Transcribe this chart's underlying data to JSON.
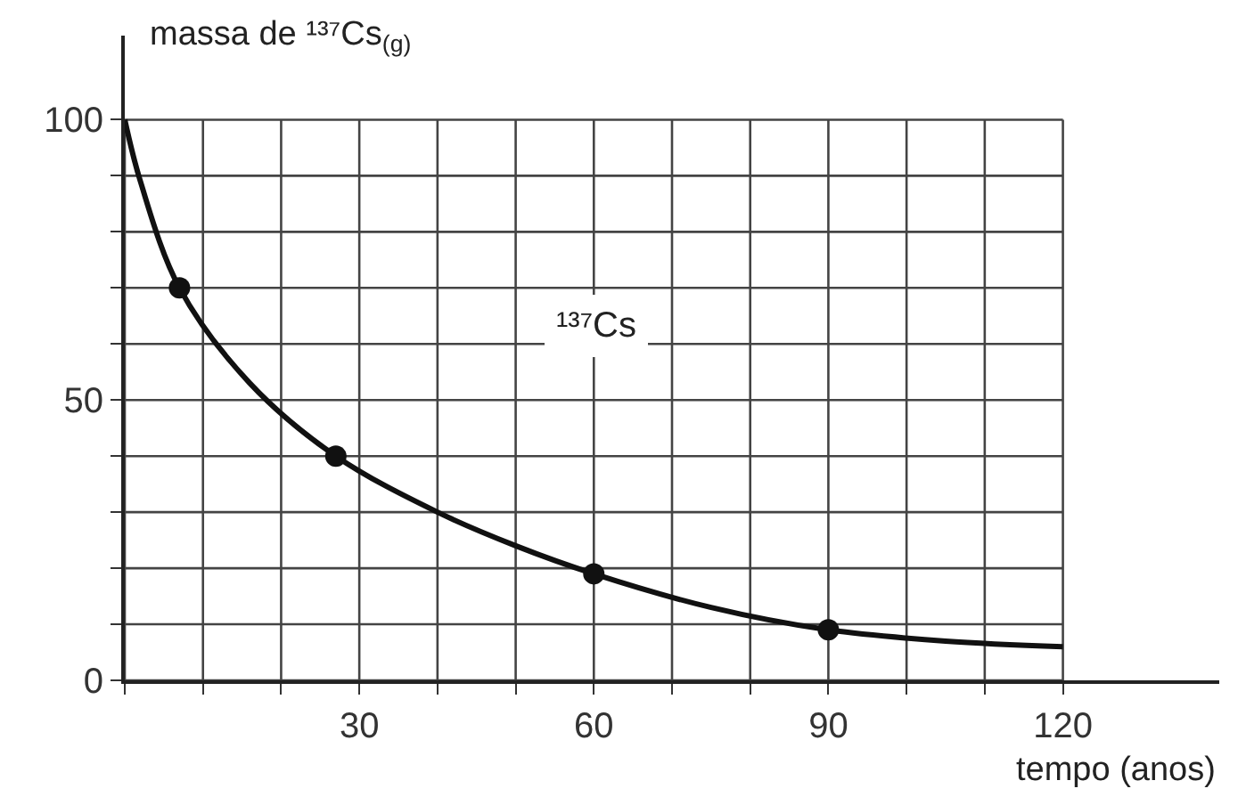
{
  "chart_data": {
    "type": "line",
    "xlabel": "tempo (anos)",
    "ylabel": "massa de ¹³⁷Cs$_{(g)}$",
    "annotations": [
      "¹³⁷Cs"
    ],
    "xlim": [
      0,
      140
    ],
    "ylim": [
      0,
      115
    ],
    "xticks": [
      {
        "value": 0,
        "label": null
      },
      {
        "value": 10,
        "label": null
      },
      {
        "value": 20,
        "label": null
      },
      30,
      {
        "value": 40,
        "label": null
      },
      {
        "value": 50,
        "label": null
      },
      60,
      {
        "value": 70,
        "label": null
      },
      {
        "value": 80,
        "label": null
      },
      90,
      {
        "value": 100,
        "label": null
      },
      {
        "value": 110,
        "label": null
      },
      120
    ],
    "yticks": [
      0,
      {
        "value": 10,
        "label": null
      },
      {
        "value": 20,
        "label": null
      },
      {
        "value": 30,
        "label": null
      },
      {
        "value": 40,
        "label": null
      },
      50,
      {
        "value": 60,
        "label": null
      },
      {
        "value": 70,
        "label": null
      },
      {
        "value": 80,
        "label": null
      },
      {
        "value": 90,
        "label": null
      },
      100
    ],
    "grid": true,
    "series": [
      {
        "color": "#111111",
        "marker": "none",
        "x": [
          0,
          2,
          7,
          16,
          27,
          40,
          50,
          60,
          75,
          90,
          105,
          120
        ],
        "values": [
          100,
          89,
          70,
          53,
          40,
          30,
          24,
          19,
          13,
          9,
          7,
          6
        ]
      },
      {
        "type": "scatter",
        "color": "#111111",
        "marker": "circle",
        "x": [
          7,
          27,
          60,
          90
        ],
        "values": [
          70,
          40,
          19,
          9
        ]
      }
    ]
  }
}
